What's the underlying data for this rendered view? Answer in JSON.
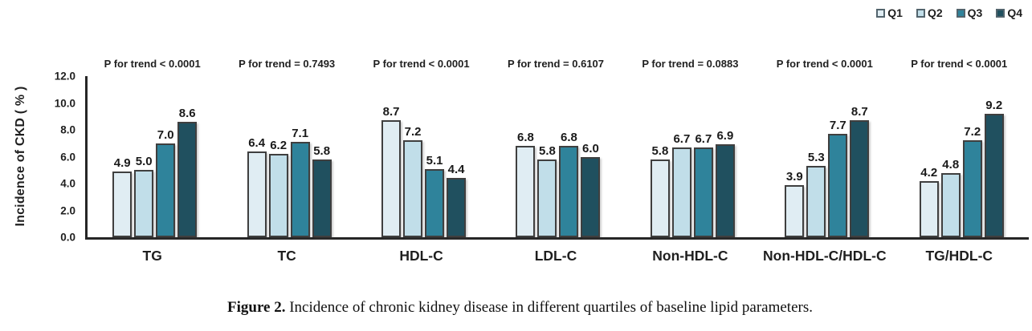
{
  "figure": {
    "caption_label": "Figure 2.",
    "caption_text": " Incidence of chronic kidney disease in different quartiles of baseline lipid parameters."
  },
  "y_axis": {
    "label": "Incidence of CKD ( % )"
  },
  "chart_data": {
    "type": "bar",
    "title": "",
    "xlabel": "",
    "ylabel": "Incidence of CKD ( % )",
    "ylim": [
      0,
      12
    ],
    "yticks": [
      0,
      2,
      4,
      6,
      8,
      10,
      12
    ],
    "grid": false,
    "legend_position": "top-right",
    "categories": [
      "TG",
      "TC",
      "HDL-C",
      "LDL-C",
      "Non-HDL-C",
      "Non-HDL-C/HDL-C",
      "TG/HDL-C"
    ],
    "series": [
      {
        "name": "Q1",
        "color": "#e0edf3",
        "values": [
          4.9,
          6.4,
          8.7,
          6.8,
          5.8,
          3.9,
          4.2
        ]
      },
      {
        "name": "Q2",
        "color": "#c1dee9",
        "values": [
          5.0,
          6.2,
          7.2,
          5.8,
          6.7,
          5.3,
          4.8
        ]
      },
      {
        "name": "Q3",
        "color": "#2f839b",
        "values": [
          7.0,
          7.1,
          5.1,
          6.8,
          6.7,
          7.7,
          7.2
        ]
      },
      {
        "name": "Q4",
        "color": "#20505f",
        "values": [
          8.6,
          5.8,
          4.4,
          6.0,
          6.9,
          8.7,
          9.2
        ]
      }
    ],
    "annotations": [
      "P for trend < 0.0001",
      "P for trend = 0.7493",
      "P for trend < 0.0001",
      "P for trend = 0.6107",
      "P for trend = 0.0883",
      "P for trend < 0.0001",
      "P for trend < 0.0001"
    ]
  },
  "colors": {
    "bar_border": "#3f3f3f",
    "axis": "#262626",
    "text": "#1f1f1f"
  }
}
